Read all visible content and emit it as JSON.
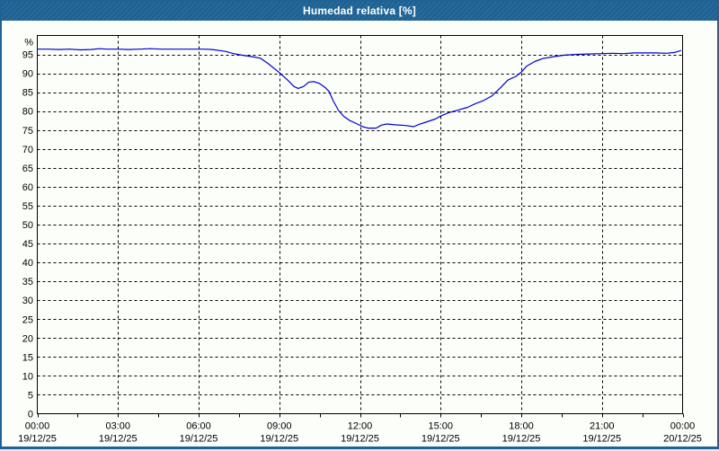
{
  "window": {
    "title": "Humedad relativa [%]"
  },
  "colors": {
    "titlebar_bg": "#1e6395",
    "window_border": "#1e6395",
    "plot_bg": "#fcfefa",
    "grid": "#000000",
    "frame": "#000000",
    "text": "#000000",
    "line": "#0000cc"
  },
  "chart_data": {
    "type": "line",
    "title": "Humedad relativa [%]",
    "y_unit_label": "%",
    "ylim": [
      0,
      100
    ],
    "ytick_step": 5,
    "ytick_labels": [
      "0",
      "5",
      "10",
      "15",
      "20",
      "25",
      "30",
      "35",
      "40",
      "45",
      "50",
      "55",
      "60",
      "65",
      "70",
      "75",
      "80",
      "85",
      "90",
      "95"
    ],
    "x_hours_range": [
      0,
      24
    ],
    "xtick_major_step_hours": 3,
    "xtick_minor_step_hours": 1.5,
    "grid_style": "dashed",
    "x_ticks": [
      {
        "time": "00:00",
        "date": "19/12/25"
      },
      {
        "time": "03:00",
        "date": "19/12/25"
      },
      {
        "time": "06:00",
        "date": "19/12/25"
      },
      {
        "time": "09:00",
        "date": "19/12/25"
      },
      {
        "time": "12:00",
        "date": "19/12/25"
      },
      {
        "time": "15:00",
        "date": "19/12/25"
      },
      {
        "time": "18:00",
        "date": "19/12/25"
      },
      {
        "time": "21:00",
        "date": "19/12/25"
      },
      {
        "time": "00:00",
        "date": "20/12/25"
      }
    ],
    "series": [
      {
        "name": "Humedad relativa",
        "color": "#0000cc",
        "points": [
          [
            0,
            96.4
          ],
          [
            0.4,
            96.4
          ],
          [
            0.8,
            96.3
          ],
          [
            1.2,
            96.4
          ],
          [
            1.6,
            96.2
          ],
          [
            2.0,
            96.3
          ],
          [
            2.3,
            96.5
          ],
          [
            2.6,
            96.4
          ],
          [
            3.0,
            96.4
          ],
          [
            3.4,
            96.3
          ],
          [
            3.8,
            96.4
          ],
          [
            4.2,
            96.5
          ],
          [
            4.6,
            96.4
          ],
          [
            5.0,
            96.4
          ],
          [
            5.4,
            96.4
          ],
          [
            5.8,
            96.4
          ],
          [
            6.2,
            96.4
          ],
          [
            6.5,
            96.3
          ],
          [
            6.8,
            96.0
          ],
          [
            7.0,
            95.8
          ],
          [
            7.3,
            95.2
          ],
          [
            7.6,
            94.8
          ],
          [
            8.0,
            94.4
          ],
          [
            8.3,
            94.0
          ],
          [
            8.6,
            92.5
          ],
          [
            9.0,
            90.2
          ],
          [
            9.3,
            88.3
          ],
          [
            9.55,
            86.5
          ],
          [
            9.7,
            86.0
          ],
          [
            9.9,
            86.5
          ],
          [
            10.1,
            87.7
          ],
          [
            10.3,
            87.8
          ],
          [
            10.5,
            87.3
          ],
          [
            10.7,
            86.3
          ],
          [
            10.85,
            85.2
          ],
          [
            11.0,
            82.8
          ],
          [
            11.2,
            80.2
          ],
          [
            11.4,
            78.6
          ],
          [
            11.6,
            77.6
          ],
          [
            11.9,
            76.6
          ],
          [
            12.1,
            75.9
          ],
          [
            12.3,
            75.5
          ],
          [
            12.6,
            75.5
          ],
          [
            12.8,
            76.3
          ],
          [
            13.0,
            76.6
          ],
          [
            13.3,
            76.4
          ],
          [
            13.7,
            76.2
          ],
          [
            14.0,
            75.9
          ],
          [
            14.2,
            76.5
          ],
          [
            14.5,
            77.2
          ],
          [
            14.8,
            77.9
          ],
          [
            15.0,
            78.7
          ],
          [
            15.3,
            79.6
          ],
          [
            15.6,
            80.2
          ],
          [
            16.0,
            81.0
          ],
          [
            16.3,
            82.0
          ],
          [
            16.6,
            82.8
          ],
          [
            16.9,
            84.0
          ],
          [
            17.2,
            86.0
          ],
          [
            17.5,
            88.2
          ],
          [
            17.8,
            89.2
          ],
          [
            18.0,
            90.3
          ],
          [
            18.2,
            91.9
          ],
          [
            18.5,
            93.1
          ],
          [
            18.8,
            93.9
          ],
          [
            19.2,
            94.4
          ],
          [
            19.6,
            94.8
          ],
          [
            20.0,
            95.0
          ],
          [
            20.5,
            95.1
          ],
          [
            21.0,
            95.2
          ],
          [
            21.4,
            95.3
          ],
          [
            21.8,
            95.2
          ],
          [
            22.2,
            95.4
          ],
          [
            22.6,
            95.4
          ],
          [
            23.0,
            95.4
          ],
          [
            23.4,
            95.3
          ],
          [
            23.7,
            95.5
          ],
          [
            23.93,
            96.0
          ]
        ]
      }
    ]
  }
}
